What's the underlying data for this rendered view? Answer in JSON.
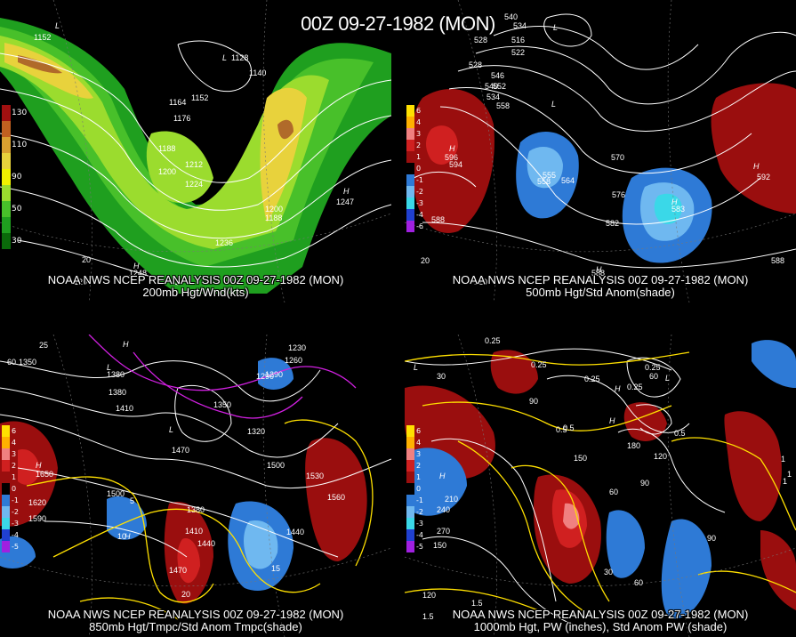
{
  "title": "00Z 09-27-1982 (MON)",
  "colors": {
    "background": "#000000",
    "contour": "#ffffff",
    "wind_green_dark": "#1f9f1f",
    "wind_green": "#48c02a",
    "wind_lime": "#9bdc2e",
    "wind_yellow": "#e8d23c",
    "wind_orange": "#d9a030",
    "wind_brown": "#b06a2a",
    "anom_red_dark": "#9a0e0e",
    "anom_red": "#d02020",
    "anom_pink": "#f08080",
    "anom_blue": "#2e7ad6",
    "anom_blue_light": "#6fb8f0",
    "anom_cyan": "#3ad8e8",
    "temp_yellow": "#ffe000",
    "temp_magenta": "#d020e0"
  },
  "panels": [
    {
      "id": "p200",
      "caption_line1": "NOAA NWS NCEP REANALYSIS 00Z 09-27-1982 (MON)",
      "caption_line2": "200mb Hgt/Wnd(kts)",
      "legend": [
        {
          "label": "130",
          "color": "#a01010"
        },
        {
          "label": "",
          "color": "#c06020"
        },
        {
          "label": "110",
          "color": "#d9a030"
        },
        {
          "label": "",
          "color": "#e8d23c"
        },
        {
          "label": "90",
          "color": "#f0f000"
        },
        {
          "label": "",
          "color": "#9bdc2e"
        },
        {
          "label": "50",
          "color": "#48c02a"
        },
        {
          "label": "",
          "color": "#1f9f1f"
        },
        {
          "label": "30",
          "color": "#0a6a0a"
        }
      ],
      "labels": [
        "1152",
        "1128",
        "1140",
        "1164",
        "1152",
        "1176",
        "1188",
        "1200",
        "1212",
        "1224",
        "1236",
        "1200",
        "1188",
        "1248",
        "1247",
        "20",
        "-120",
        "L",
        "L",
        "H",
        "H"
      ]
    },
    {
      "id": "p500",
      "caption_line1": "NOAA NWS NCEP REANALYSIS 00Z 09-27-1982 (MON)",
      "caption_line2": "500mb Hgt/Std Anom(shade)",
      "legend": [
        {
          "label": "6",
          "color": "#ffe000"
        },
        {
          "label": "4",
          "color": "#ffb000"
        },
        {
          "label": "3",
          "color": "#f08080"
        },
        {
          "label": "2",
          "color": "#d02020"
        },
        {
          "label": "1",
          "color": "#9a0e0e"
        },
        {
          "label": "0",
          "color": "#000000"
        },
        {
          "label": "-1",
          "color": "#2e7ad6"
        },
        {
          "label": "-2",
          "color": "#6fb8f0"
        },
        {
          "label": "-3",
          "color": "#3ad8e8"
        },
        {
          "label": "-4",
          "color": "#2040d0"
        },
        {
          "label": "-6",
          "color": "#a020e0"
        }
      ],
      "labels": [
        "528",
        "540",
        "534",
        "540",
        "534",
        "528",
        "516",
        "522",
        "546",
        "552",
        "558",
        "594",
        "570",
        "558",
        "564",
        "576",
        "582",
        "588",
        "592",
        "596",
        "555",
        "583",
        "588",
        "588",
        "20",
        "-120",
        "L",
        "L",
        "H",
        "H",
        "H",
        "H"
      ]
    },
    {
      "id": "p850",
      "caption_line1": "NOAA NWS NCEP REANALYSIS 00Z 09-27-1982 (MON)",
      "caption_line2": "850mb Hgt/Tmpc/Std Anom Tmpc(shade)",
      "legend": [
        {
          "label": "6",
          "color": "#ffe000"
        },
        {
          "label": "4",
          "color": "#ffb000"
        },
        {
          "label": "3",
          "color": "#f08080"
        },
        {
          "label": "2",
          "color": "#d02020"
        },
        {
          "label": "1",
          "color": "#9a0e0e"
        },
        {
          "label": "0",
          "color": "#000000"
        },
        {
          "label": "-1",
          "color": "#2e7ad6"
        },
        {
          "label": "-2",
          "color": "#6fb8f0"
        },
        {
          "label": "-3",
          "color": "#3ad8e8"
        },
        {
          "label": "-4",
          "color": "#2040d0"
        },
        {
          "label": "-5",
          "color": "#a020e0"
        }
      ],
      "labels": [
        "1350",
        "1380",
        "1380",
        "1230",
        "1260",
        "1290",
        "1290",
        "1410",
        "1350",
        "1320",
        "1470",
        "1500",
        "1530",
        "1560",
        "1620",
        "1590",
        "1500",
        "1410",
        "1440",
        "1470",
        "1380",
        "1440",
        "1650",
        "5",
        "10",
        "15",
        "20",
        "25",
        "60",
        "L",
        "L",
        "H",
        "H",
        "H"
      ]
    },
    {
      "id": "p1000",
      "caption_line1": "NOAA NWS NCEP REANALYSIS 00Z 09-27-1982 (MON)",
      "caption_line2": "1000mb Hgt, PW (inches), Std Anom PW (shade)",
      "legend": [
        {
          "label": "6",
          "color": "#ffe000"
        },
        {
          "label": "4",
          "color": "#ffb000"
        },
        {
          "label": "3",
          "color": "#f08080"
        },
        {
          "label": "2",
          "color": "#d02020"
        },
        {
          "label": "1",
          "color": "#9a0e0e"
        },
        {
          "label": "0",
          "color": "#000000"
        },
        {
          "label": "-1",
          "color": "#2e7ad6"
        },
        {
          "label": "-2",
          "color": "#6fb8f0"
        },
        {
          "label": "-3",
          "color": "#3ad8e8"
        },
        {
          "label": "-4",
          "color": "#2040d0"
        },
        {
          "label": "-5",
          "color": "#a020e0"
        }
      ],
      "labels": [
        "0.25",
        "0.25",
        "0.25",
        "0.25",
        "0.25",
        "0.5",
        "0.5",
        "0.5",
        "1",
        "1",
        "1.5",
        "1.5",
        "30",
        "60",
        "90",
        "120",
        "150",
        "180",
        "210",
        "240",
        "270",
        "150",
        "120",
        "90",
        "60",
        "30",
        "60",
        "90",
        "1",
        "L",
        "L",
        "H",
        "H",
        "H"
      ]
    }
  ]
}
